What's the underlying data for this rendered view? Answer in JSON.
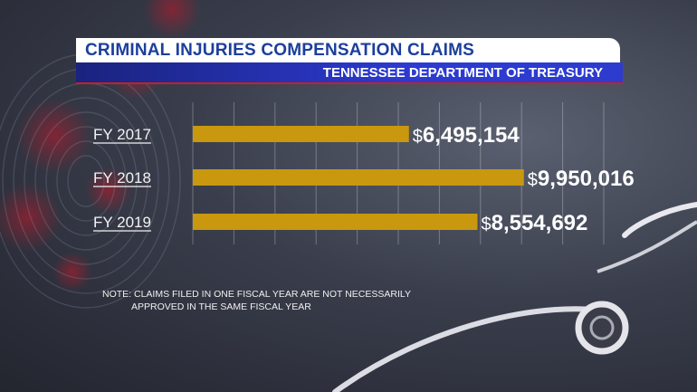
{
  "title": "CRIMINAL INJURIES COMPENSATION CLAIMS",
  "subtitle": "TENNESSEE DEPARTMENT OF TREASURY",
  "note": {
    "line1": "NOTE: CLAIMS FILED IN ONE FISCAL YEAR ARE NOT NECESSARILY",
    "line2": "APPROVED IN THE SAME FISCAL YEAR"
  },
  "colors": {
    "bar": "#c9980e",
    "title_text": "#1c3f9c",
    "subtitle_band": "#2c3ad0",
    "accent_red": "#c82121"
  },
  "chart_data": {
    "type": "bar",
    "orientation": "horizontal",
    "title": "CRIMINAL INJURIES COMPENSATION CLAIMS",
    "subtitle": "TENNESSEE DEPARTMENT OF TREASURY",
    "categories": [
      "FY 2017",
      "FY 2018",
      "FY 2019"
    ],
    "values": [
      6495154,
      9950016,
      8554692
    ],
    "value_labels": [
      "6,495,154",
      "9,950,016",
      "8,554,692"
    ],
    "value_prefix": "$",
    "xlim": [
      0,
      12350000
    ],
    "grid": true
  }
}
